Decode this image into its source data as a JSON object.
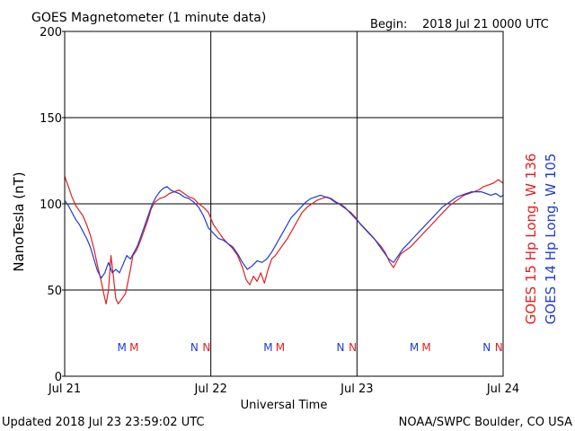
{
  "header": {
    "title": "GOES Magnetometer (1 minute data)",
    "begin_label": "Begin:",
    "begin_value": "2018 Jul 21 0000 UTC"
  },
  "footer": {
    "updated": "Updated 2018 Jul 23 23:59:02 UTC",
    "credit": "NOAA/SWPC Boulder, CO USA"
  },
  "chart_data": {
    "type": "line",
    "xlabel": "Universal Time",
    "ylabel": "NanoTesla (nT)",
    "x_unit": "hours since start",
    "xlim": [
      0,
      72
    ],
    "ylim": [
      0,
      200
    ],
    "y_ticks": [
      0,
      50,
      100,
      150,
      200
    ],
    "x_ticks": [
      {
        "x": 0,
        "label": "Jul 21"
      },
      {
        "x": 24,
        "label": "Jul 22"
      },
      {
        "x": 48,
        "label": "Jul 23"
      },
      {
        "x": 72,
        "label": "Jul 24"
      }
    ],
    "grid": true,
    "series": [
      {
        "name": "GOES 15 Hp  Long. W 136",
        "color": "#e02020",
        "points": [
          [
            0,
            116
          ],
          [
            0.6,
            110
          ],
          [
            1.2,
            104
          ],
          [
            1.8,
            99
          ],
          [
            2.4,
            96
          ],
          [
            3,
            93
          ],
          [
            3.6,
            88
          ],
          [
            4.2,
            82
          ],
          [
            4.8,
            74
          ],
          [
            5.4,
            64
          ],
          [
            6,
            55
          ],
          [
            6.4,
            48
          ],
          [
            6.8,
            42
          ],
          [
            7.2,
            50
          ],
          [
            7.6,
            70
          ],
          [
            8,
            58
          ],
          [
            8.4,
            45
          ],
          [
            8.8,
            42
          ],
          [
            9.2,
            44
          ],
          [
            9.6,
            46
          ],
          [
            10,
            48
          ],
          [
            10.4,
            55
          ],
          [
            10.8,
            62
          ],
          [
            11.2,
            70
          ],
          [
            11.8,
            73
          ],
          [
            12.4,
            78
          ],
          [
            13,
            84
          ],
          [
            13.6,
            90
          ],
          [
            14.2,
            97
          ],
          [
            14.8,
            101
          ],
          [
            15.6,
            103
          ],
          [
            16.4,
            104
          ],
          [
            17.2,
            106
          ],
          [
            18,
            107
          ],
          [
            18.8,
            108
          ],
          [
            19.6,
            106
          ],
          [
            20.4,
            104
          ],
          [
            21.2,
            103
          ],
          [
            22,
            100
          ],
          [
            22.8,
            98
          ],
          [
            23.6,
            95
          ],
          [
            24.4,
            88
          ],
          [
            25.2,
            84
          ],
          [
            26,
            80
          ],
          [
            26.8,
            77
          ],
          [
            27.6,
            74
          ],
          [
            28.4,
            70
          ],
          [
            29.2,
            63
          ],
          [
            29.8,
            56
          ],
          [
            30.4,
            53
          ],
          [
            31,
            58
          ],
          [
            31.6,
            55
          ],
          [
            32.2,
            60
          ],
          [
            32.8,
            54
          ],
          [
            33.4,
            62
          ],
          [
            34,
            68
          ],
          [
            34.6,
            70
          ],
          [
            35.2,
            73
          ],
          [
            35.8,
            76
          ],
          [
            36.6,
            80
          ],
          [
            37.4,
            85
          ],
          [
            38.2,
            90
          ],
          [
            39,
            95
          ],
          [
            39.8,
            98
          ],
          [
            40.6,
            100
          ],
          [
            41.4,
            102
          ],
          [
            42.2,
            103
          ],
          [
            43,
            104
          ],
          [
            43.8,
            103
          ],
          [
            44.6,
            101
          ],
          [
            45.4,
            99
          ],
          [
            46.2,
            97
          ],
          [
            47,
            95
          ],
          [
            47.8,
            92
          ],
          [
            48.6,
            88
          ],
          [
            49.4,
            85
          ],
          [
            50.2,
            82
          ],
          [
            51,
            79
          ],
          [
            51.8,
            76
          ],
          [
            52.6,
            72
          ],
          [
            53.4,
            66
          ],
          [
            54,
            63
          ],
          [
            54.6,
            67
          ],
          [
            55.2,
            71
          ],
          [
            56,
            73
          ],
          [
            56.8,
            75
          ],
          [
            57.6,
            78
          ],
          [
            58.4,
            81
          ],
          [
            59.2,
            84
          ],
          [
            60,
            87
          ],
          [
            60.8,
            90
          ],
          [
            61.6,
            93
          ],
          [
            62.4,
            96
          ],
          [
            63.2,
            99
          ],
          [
            64,
            101
          ],
          [
            64.8,
            103
          ],
          [
            65.6,
            105
          ],
          [
            66.4,
            106
          ],
          [
            67.2,
            107
          ],
          [
            68,
            108
          ],
          [
            68.8,
            110
          ],
          [
            69.6,
            111
          ],
          [
            70.4,
            112
          ],
          [
            71.2,
            114
          ],
          [
            72,
            112
          ]
        ]
      },
      {
        "name": "GOES 14 Hp  Long. W 105",
        "color": "#1e3cd0",
        "points": [
          [
            0,
            102
          ],
          [
            0.6,
            99
          ],
          [
            1.2,
            95
          ],
          [
            1.8,
            91
          ],
          [
            2.4,
            88
          ],
          [
            3,
            84
          ],
          [
            3.6,
            80
          ],
          [
            4.2,
            75
          ],
          [
            4.8,
            68
          ],
          [
            5.4,
            61
          ],
          [
            6,
            57
          ],
          [
            6.6,
            60
          ],
          [
            7.2,
            66
          ],
          [
            7.8,
            60
          ],
          [
            8.4,
            62
          ],
          [
            9,
            60
          ],
          [
            9.6,
            65
          ],
          [
            10.2,
            70
          ],
          [
            10.8,
            68
          ],
          [
            11.4,
            72
          ],
          [
            12,
            76
          ],
          [
            12.6,
            82
          ],
          [
            13.2,
            88
          ],
          [
            13.8,
            94
          ],
          [
            14.4,
            100
          ],
          [
            15,
            104
          ],
          [
            15.6,
            107
          ],
          [
            16.2,
            109
          ],
          [
            16.8,
            110
          ],
          [
            17.4,
            108
          ],
          [
            18,
            107
          ],
          [
            18.8,
            106
          ],
          [
            19.6,
            104
          ],
          [
            20.4,
            103
          ],
          [
            21.2,
            101
          ],
          [
            22,
            98
          ],
          [
            22.8,
            93
          ],
          [
            23.6,
            86
          ],
          [
            24.4,
            83
          ],
          [
            25.2,
            80
          ],
          [
            26,
            79
          ],
          [
            26.8,
            77
          ],
          [
            27.6,
            75
          ],
          [
            28.4,
            71
          ],
          [
            29.2,
            66
          ],
          [
            30,
            62
          ],
          [
            30.8,
            64
          ],
          [
            31.6,
            67
          ],
          [
            32.4,
            66
          ],
          [
            33.2,
            68
          ],
          [
            34,
            72
          ],
          [
            34.8,
            77
          ],
          [
            35.6,
            82
          ],
          [
            36.4,
            87
          ],
          [
            37.2,
            92
          ],
          [
            38,
            95
          ],
          [
            38.8,
            98
          ],
          [
            39.6,
            101
          ],
          [
            40.4,
            103
          ],
          [
            41.2,
            104
          ],
          [
            42,
            105
          ],
          [
            42.8,
            104
          ],
          [
            43.6,
            103
          ],
          [
            44.4,
            101
          ],
          [
            45.2,
            100
          ],
          [
            46,
            98
          ],
          [
            46.8,
            95
          ],
          [
            47.6,
            92
          ],
          [
            48.4,
            89
          ],
          [
            49.2,
            86
          ],
          [
            50,
            83
          ],
          [
            50.8,
            80
          ],
          [
            51.6,
            76
          ],
          [
            52.4,
            72
          ],
          [
            53.2,
            68
          ],
          [
            54,
            66
          ],
          [
            54.8,
            70
          ],
          [
            55.6,
            74
          ],
          [
            56.4,
            77
          ],
          [
            57.2,
            80
          ],
          [
            58,
            83
          ],
          [
            58.8,
            86
          ],
          [
            59.6,
            89
          ],
          [
            60.4,
            92
          ],
          [
            61.2,
            95
          ],
          [
            62,
            98
          ],
          [
            62.8,
            100
          ],
          [
            63.6,
            102
          ],
          [
            64.4,
            104
          ],
          [
            65.2,
            105
          ],
          [
            66,
            106
          ],
          [
            66.8,
            107
          ],
          [
            67.6,
            107
          ],
          [
            68.4,
            107
          ],
          [
            69.2,
            106
          ],
          [
            70,
            105
          ],
          [
            70.8,
            106
          ],
          [
            71.6,
            104
          ],
          [
            72,
            105
          ]
        ]
      }
    ],
    "markers": [
      {
        "x": 9.4,
        "label": "M",
        "color": "#1e3cd0"
      },
      {
        "x": 11.4,
        "label": "M",
        "color": "#e02020"
      },
      {
        "x": 21.3,
        "label": "N",
        "color": "#1e3cd0"
      },
      {
        "x": 23.3,
        "label": "N",
        "color": "#e02020"
      },
      {
        "x": 33.4,
        "label": "M",
        "color": "#1e3cd0"
      },
      {
        "x": 35.4,
        "label": "M",
        "color": "#e02020"
      },
      {
        "x": 45.3,
        "label": "N",
        "color": "#1e3cd0"
      },
      {
        "x": 47.3,
        "label": "N",
        "color": "#e02020"
      },
      {
        "x": 57.4,
        "label": "M",
        "color": "#1e3cd0"
      },
      {
        "x": 59.4,
        "label": "M",
        "color": "#e02020"
      },
      {
        "x": 69.3,
        "label": "N",
        "color": "#1e3cd0"
      },
      {
        "x": 71.3,
        "label": "N",
        "color": "#e02020"
      }
    ],
    "right_labels": [
      {
        "text": "GOES 15 Hp  Long. W 136",
        "color": "#e02020"
      },
      {
        "text": "GOES 14 Hp  Long. W 105",
        "color": "#1e3cd0"
      }
    ]
  }
}
